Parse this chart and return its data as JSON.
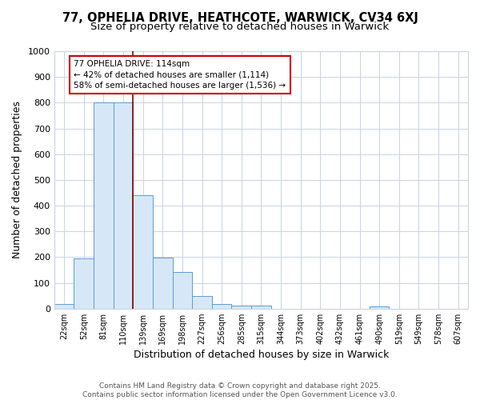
{
  "title": "77, OPHELIA DRIVE, HEATHCOTE, WARWICK, CV34 6XJ",
  "subtitle": "Size of property relative to detached houses in Warwick",
  "xlabel": "Distribution of detached houses by size in Warwick",
  "ylabel": "Number of detached properties",
  "categories": [
    "22sqm",
    "52sqm",
    "81sqm",
    "110sqm",
    "139sqm",
    "169sqm",
    "198sqm",
    "227sqm",
    "256sqm",
    "285sqm",
    "315sqm",
    "344sqm",
    "373sqm",
    "402sqm",
    "432sqm",
    "461sqm",
    "490sqm",
    "519sqm",
    "549sqm",
    "578sqm",
    "607sqm"
  ],
  "values": [
    18,
    195,
    800,
    800,
    440,
    198,
    143,
    48,
    18,
    12,
    10,
    0,
    0,
    0,
    0,
    0,
    8,
    0,
    0,
    0,
    0
  ],
  "bar_color": "#d6e8f7",
  "bar_edge_color": "#5b9bd5",
  "vline_x_index": 3.5,
  "vline_color": "#8b0000",
  "annotation_line1": "77 OPHELIA DRIVE: 114sqm",
  "annotation_line2": "← 42% of detached houses are smaller (1,114)",
  "annotation_line3": "58% of semi-detached houses are larger (1,536) →",
  "annotation_box_color": "#ffffff",
  "annotation_box_edge_color": "#cc0000",
  "ylim": [
    0,
    1000
  ],
  "yticks": [
    0,
    100,
    200,
    300,
    400,
    500,
    600,
    700,
    800,
    900,
    1000
  ],
  "footer_text": "Contains HM Land Registry data © Crown copyright and database right 2025.\nContains public sector information licensed under the Open Government Licence v3.0.",
  "background_color": "#ffffff",
  "grid_color": "#c8d4e0",
  "title_fontsize": 10.5,
  "subtitle_fontsize": 9.5,
  "tick_label_fontsize": 7,
  "axis_label_fontsize": 9,
  "footer_fontsize": 6.5
}
